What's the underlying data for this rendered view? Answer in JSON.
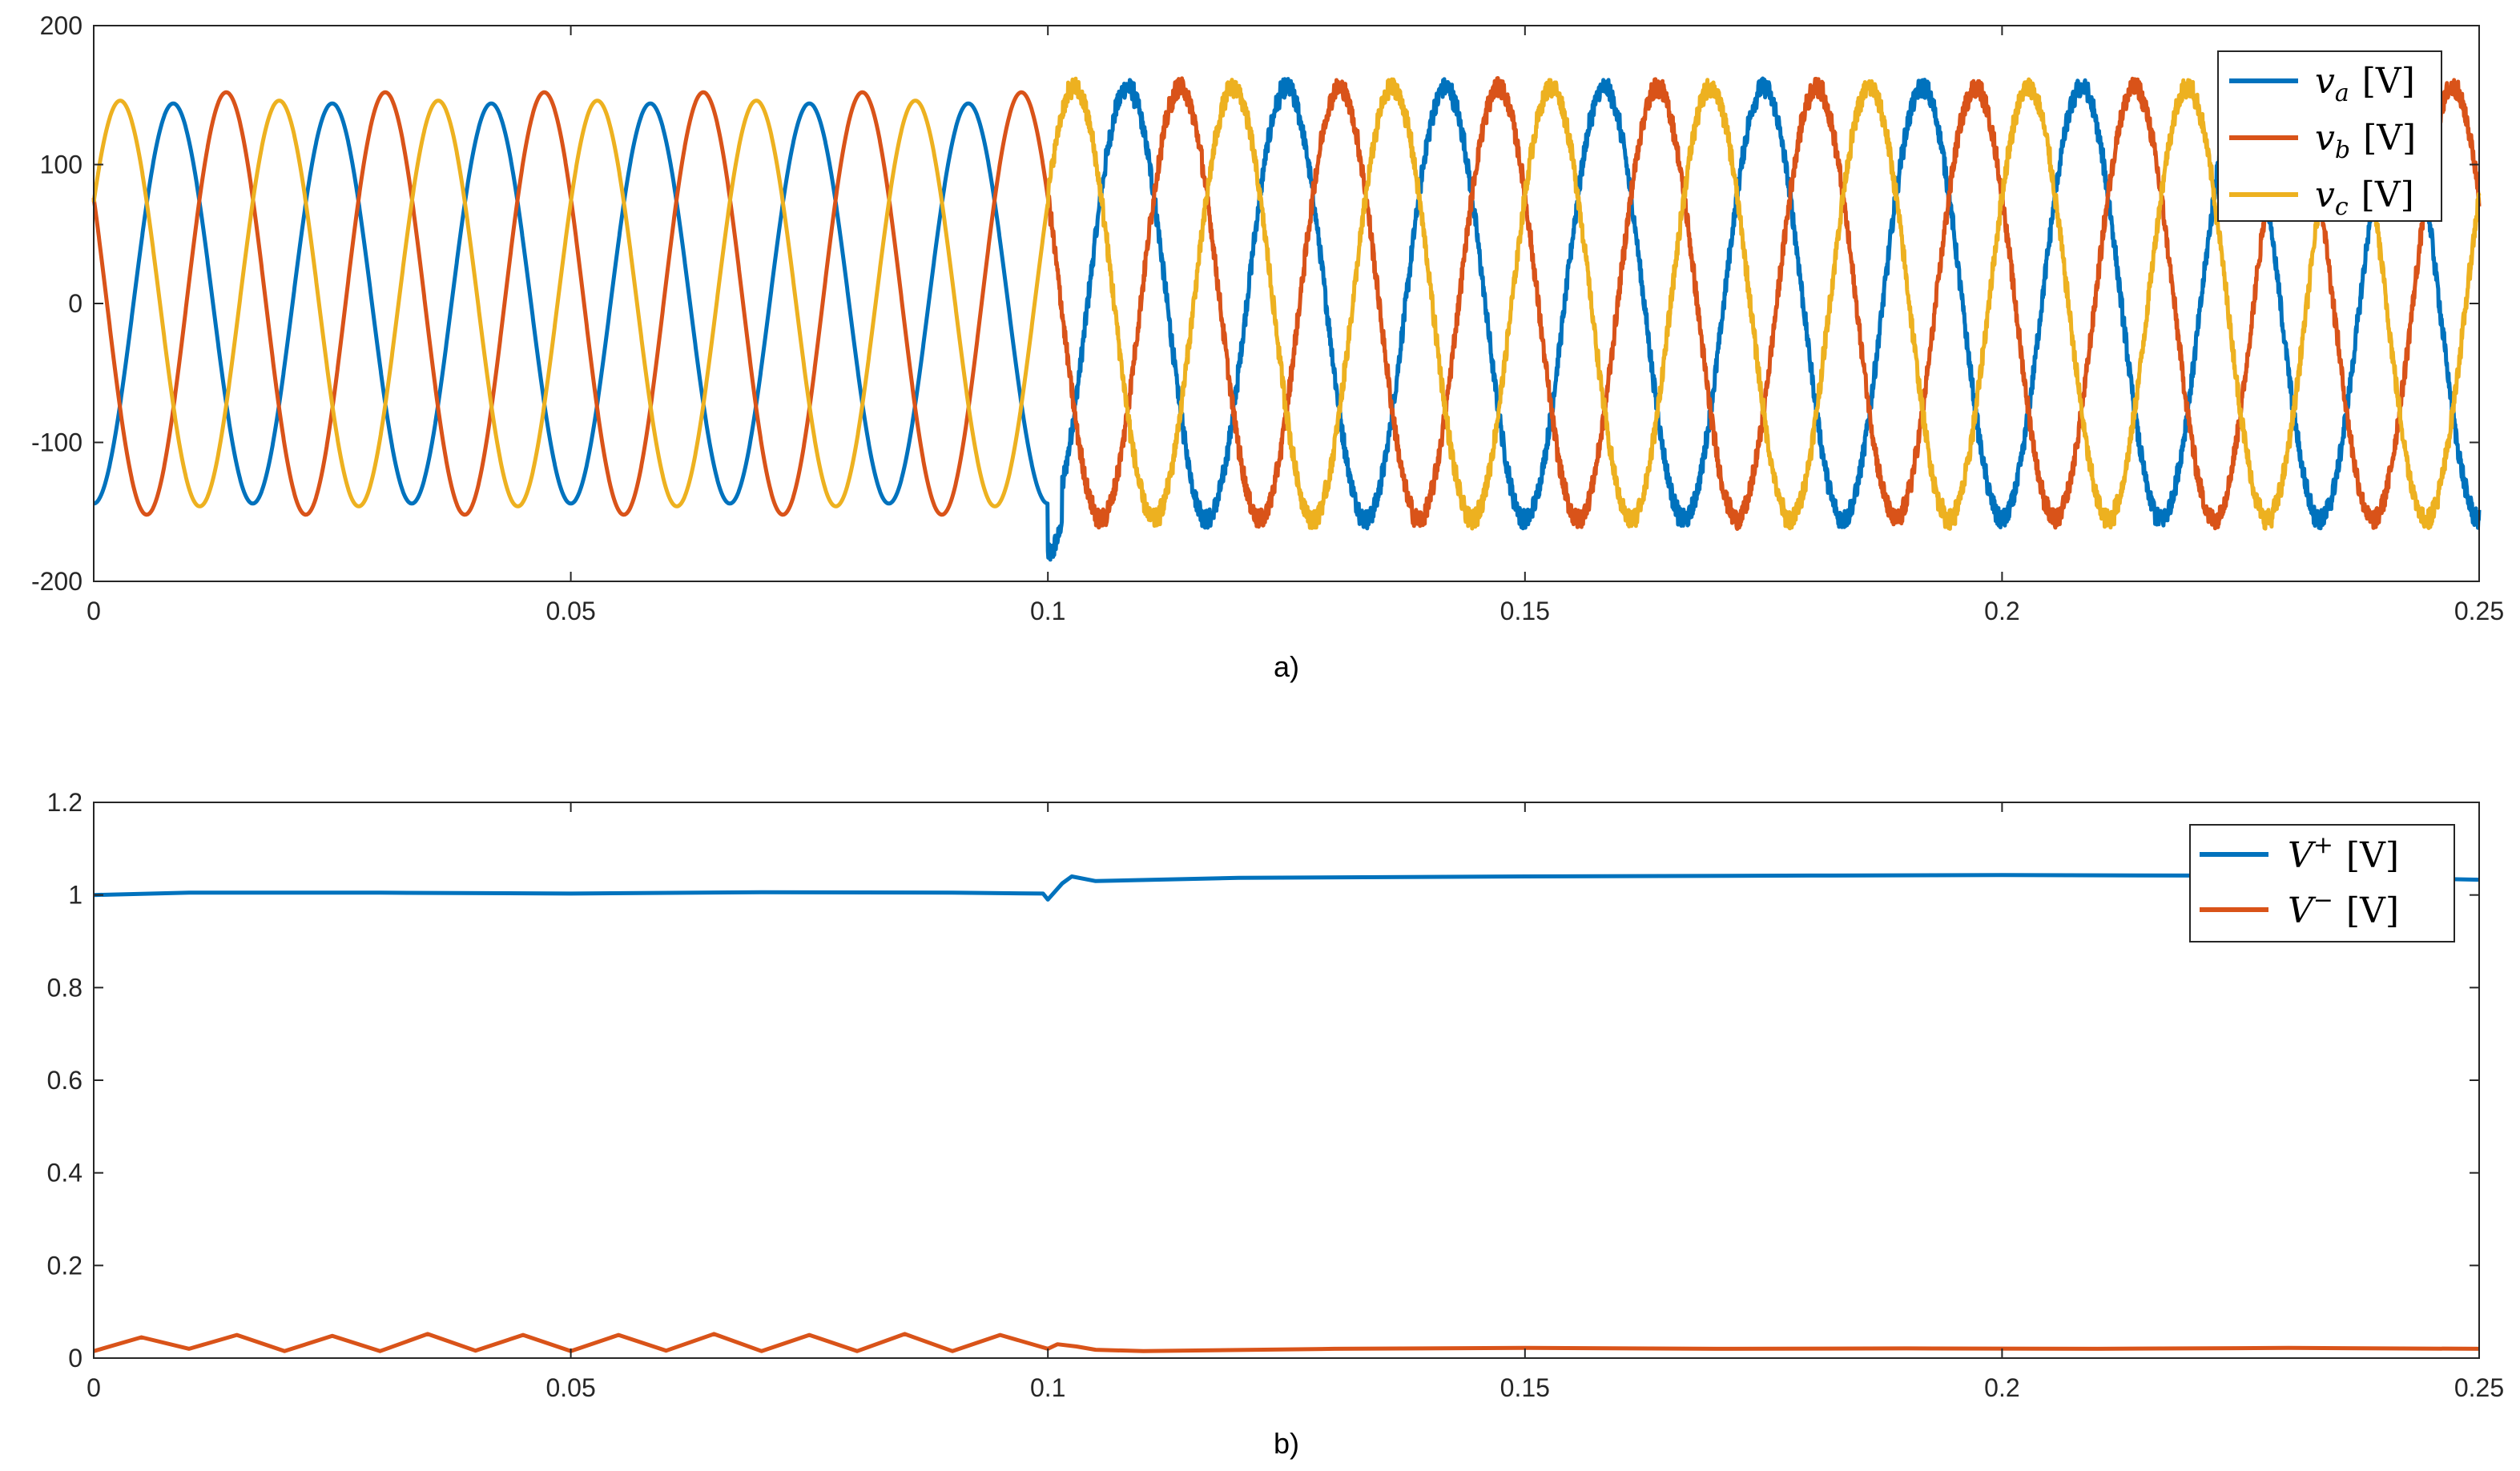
{
  "chart_data": [
    {
      "type": "line",
      "caption": "a)",
      "xlim": [
        0,
        0.25
      ],
      "ylim": [
        -200,
        200
      ],
      "xticks": [
        0,
        0.05,
        0.1,
        0.15,
        0.2,
        0.25
      ],
      "xtick_labels": [
        "0",
        "0.05",
        "0.1",
        "0.15",
        "0.2",
        "0.25"
      ],
      "yticks": [
        -200,
        -100,
        0,
        100,
        200
      ],
      "ytick_labels": [
        "-200",
        "-100",
        "0",
        "100",
        "200"
      ],
      "legend_position": "top-right",
      "grid": false,
      "frequency_hz": 60,
      "event_time": 0.1,
      "series": [
        {
          "name": "v_a [V]",
          "symbol": "v",
          "subscript": "a",
          "unit": "[V]",
          "color": "#0072BD",
          "amplitude_before": 144,
          "amplitude_after": 155,
          "phase_deg": -90,
          "noise": true
        },
        {
          "name": "v_b [V]",
          "symbol": "v",
          "subscript": "b",
          "unit": "[V]",
          "color": "#D95319",
          "amplitude_before": 152,
          "amplitude_after": 155,
          "phase_deg": 150,
          "noise": true
        },
        {
          "name": "v_c [V]",
          "symbol": "v",
          "subscript": "c",
          "unit": "[V]",
          "color": "#EDB120",
          "amplitude_before": 146,
          "amplitude_after": 155,
          "phase_deg": 30,
          "noise": true
        }
      ]
    },
    {
      "type": "line",
      "caption": "b)",
      "xlim": [
        0,
        0.25
      ],
      "ylim": [
        0,
        1.2
      ],
      "xticks": [
        0,
        0.05,
        0.1,
        0.15,
        0.2,
        0.25
      ],
      "xtick_labels": [
        "0",
        "0.05",
        "0.1",
        "0.15",
        "0.2",
        "0.25"
      ],
      "yticks": [
        0,
        0.2,
        0.4,
        0.6,
        0.8,
        1,
        1.2
      ],
      "ytick_labels": [
        "0",
        "0.2",
        "0.4",
        "0.6",
        "0.8",
        "1",
        "1.2"
      ],
      "legend_position": "top-right",
      "grid": false,
      "series": [
        {
          "name": "V+ [V]",
          "symbol": "V",
          "superscript": "+",
          "unit": "[V]",
          "color": "#0072BD",
          "x": [
            0,
            0.01,
            0.03,
            0.05,
            0.07,
            0.09,
            0.0995,
            0.1,
            0.1015,
            0.1025,
            0.105,
            0.12,
            0.15,
            0.18,
            0.2,
            0.22,
            0.24,
            0.245,
            0.25
          ],
          "y": [
            1.0,
            1.005,
            1.005,
            1.003,
            1.006,
            1.005,
            1.003,
            0.99,
            1.025,
            1.04,
            1.03,
            1.037,
            1.04,
            1.042,
            1.043,
            1.042,
            1.038,
            1.035,
            1.033
          ]
        },
        {
          "name": "V- [V]",
          "symbol": "V",
          "superscript": "−",
          "unit": "[V]",
          "color": "#D95319",
          "x": [
            0,
            0.005,
            0.01,
            0.015,
            0.02,
            0.025,
            0.03,
            0.035,
            0.04,
            0.045,
            0.05,
            0.055,
            0.06,
            0.065,
            0.07,
            0.075,
            0.08,
            0.085,
            0.09,
            0.095,
            0.1,
            0.101,
            0.103,
            0.105,
            0.11,
            0.13,
            0.15,
            0.17,
            0.19,
            0.21,
            0.23,
            0.25
          ],
          "y": [
            0.015,
            0.045,
            0.02,
            0.05,
            0.015,
            0.048,
            0.015,
            0.052,
            0.016,
            0.05,
            0.015,
            0.05,
            0.016,
            0.052,
            0.015,
            0.05,
            0.015,
            0.052,
            0.015,
            0.05,
            0.02,
            0.03,
            0.025,
            0.018,
            0.015,
            0.02,
            0.022,
            0.02,
            0.021,
            0.02,
            0.022,
            0.02
          ]
        }
      ]
    }
  ]
}
